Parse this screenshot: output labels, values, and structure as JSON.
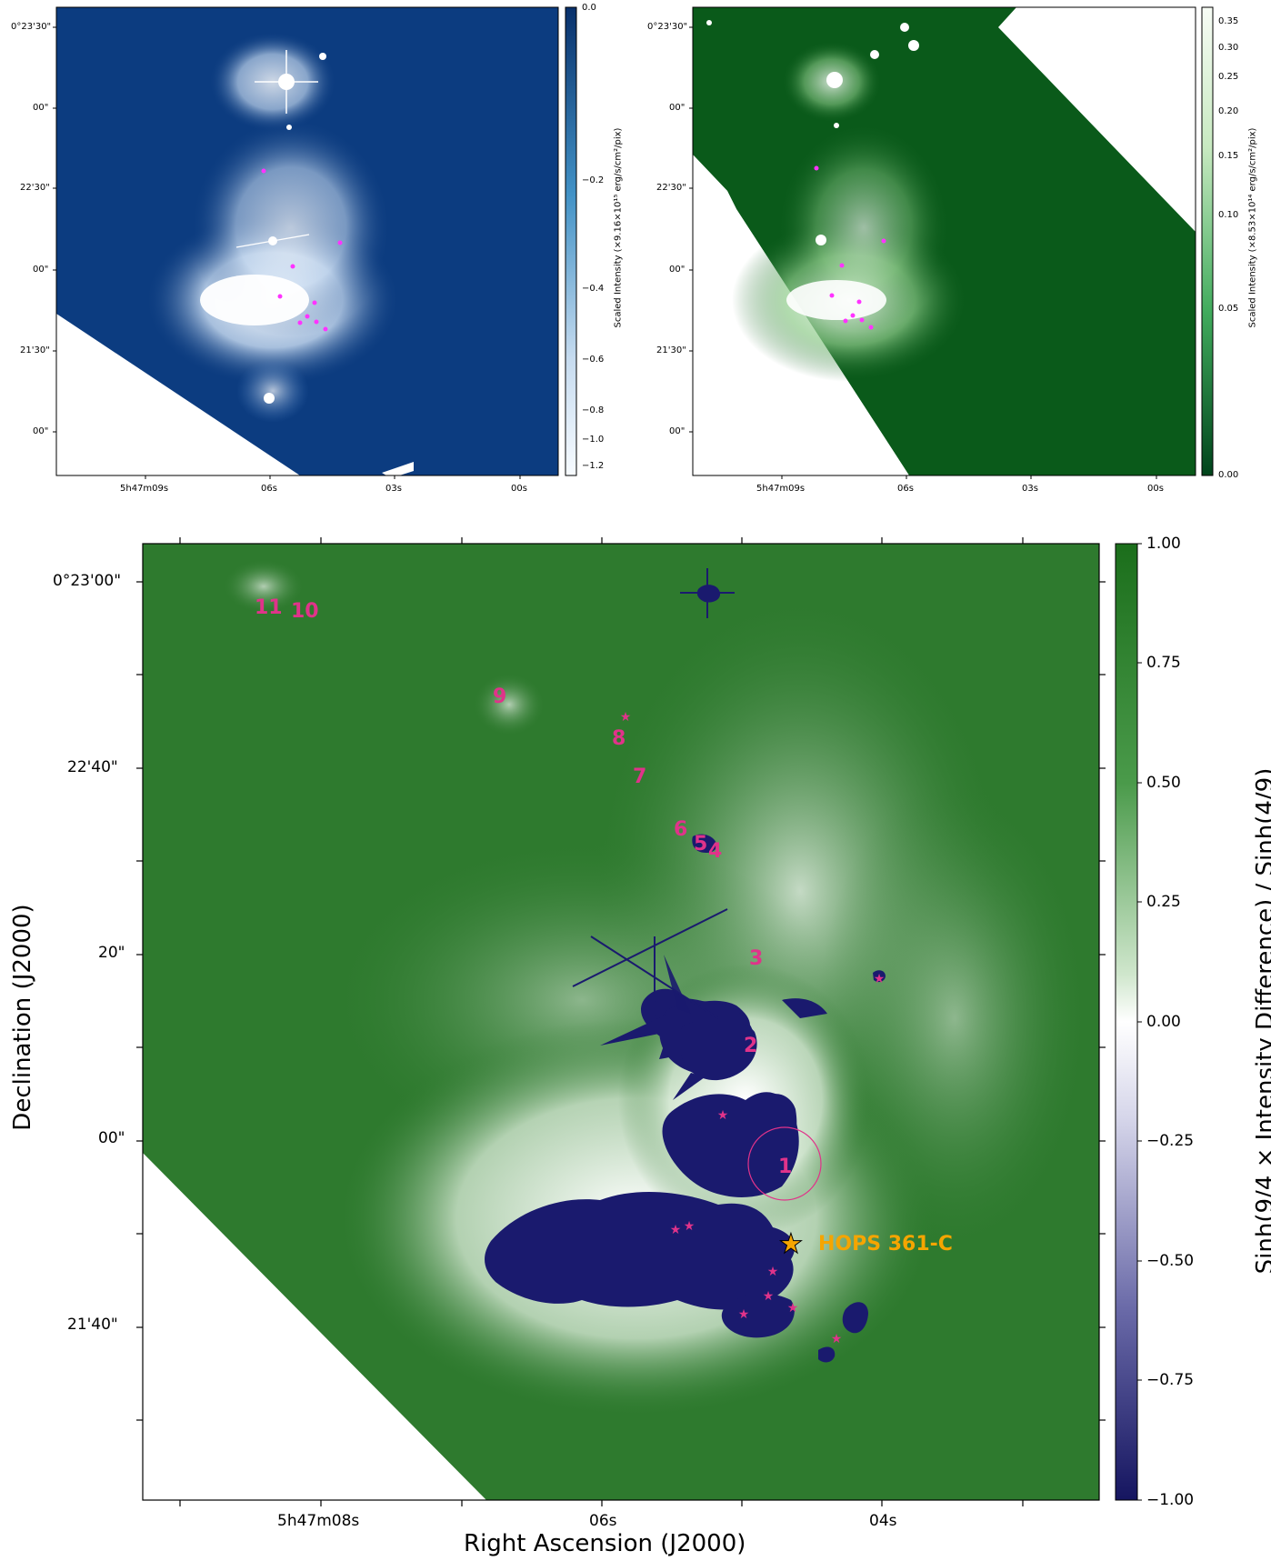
{
  "top_left": {
    "dec_ticks": [
      "0°23'30\"",
      "00\"",
      "22'30\"",
      "00\"",
      "21'30\"",
      "00\""
    ],
    "ra_ticks": [
      "5h47m09s",
      "06s",
      "03s",
      "00s"
    ],
    "colorbar_ticks": [
      "0.0",
      "−0.2",
      "−0.4",
      "−0.6",
      "−0.8",
      "−1.0",
      "−1.2"
    ],
    "colorbar_label": "Scaled Intensity (×9.16×10¹⁵ erg/s/cm²/pix)",
    "colors": {
      "background": "#0c3c80",
      "nebula": "#ffffff"
    }
  },
  "top_right": {
    "dec_ticks": [
      "0°23'30\"",
      "00\"",
      "22'30\"",
      "00\"",
      "21'30\"",
      "00\""
    ],
    "ra_ticks": [
      "5h47m09s",
      "06s",
      "03s",
      "00s"
    ],
    "colorbar_ticks": [
      "0.35",
      "0.30",
      "0.25",
      "0.20",
      "0.15",
      "0.10",
      "0.05",
      "0.00"
    ],
    "colorbar_label": "Scaled Intensity (×8.53×10¹⁴ erg/s/cm²/pix)",
    "colors": {
      "background": "#0a5a1a",
      "nebula": "#e8f5e0"
    }
  },
  "main": {
    "xlabel": "Right Ascension (J2000)",
    "ylabel": "Declination (J2000)",
    "dec_ticks": [
      "0°23'00\"",
      "22'40\"",
      "20\"",
      "00\"",
      "21'40\""
    ],
    "ra_ticks": [
      "5h47m08s",
      "06s",
      "04s"
    ],
    "colorbar_ticks": [
      "1.00",
      "0.75",
      "0.50",
      "0.25",
      "0.00",
      "−0.25",
      "−0.50",
      "−0.75",
      "−1.00"
    ],
    "colorbar_label": "Sinh(9/4 × Intensity Difference) / Sinh(4/9)",
    "knots": [
      "11",
      "10",
      "9",
      "8",
      "7",
      "6",
      "5",
      "4",
      "3",
      "2",
      "1"
    ],
    "source_label": "HOPS 361-C",
    "colors": {
      "green": "#2e7a2e",
      "white": "#ffffff",
      "navy": "#1a1a6e",
      "magenta": "#e0338a",
      "gold": "#f5a500"
    }
  }
}
